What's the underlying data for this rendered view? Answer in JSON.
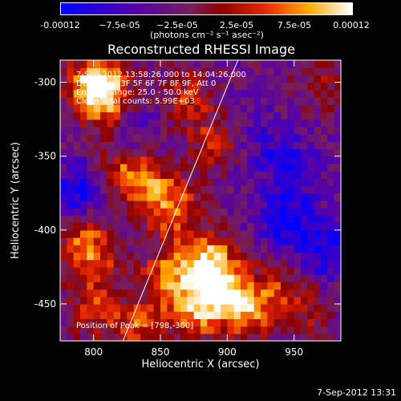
{
  "colorbar": {
    "ticks": [
      "-0.00012",
      "−7.5e-05",
      "−2.5e-05",
      "2.5e-05",
      "7.5e-05",
      "0.00012"
    ],
    "units": "(photons cm⁻² s⁻¹ asec⁻²)",
    "range": [
      -0.00012,
      0.00012
    ]
  },
  "chart_data": {
    "type": "heatmap",
    "title": "Reconstructed RHESSI Image",
    "xlabel": "Heliocentric X (arcsec)",
    "ylabel": "Heliocentric Y (arcsec)",
    "xlim": [
      775,
      985
    ],
    "ylim": [
      -475,
      -285
    ],
    "xticks": [
      "800",
      "850",
      "900",
      "950"
    ],
    "yticks": [
      "-300",
      "-350",
      "-400",
      "-450"
    ],
    "xtick_values": [
      800,
      850,
      900,
      950
    ],
    "ytick_values": [
      -300,
      -350,
      -400,
      -450
    ],
    "limb_line": [
      [
        822,
        -475
      ],
      [
        908,
        -285
      ]
    ],
    "annotations": [
      "7-Sep-2012 13:58:26.000 to 14:04:26.000",
      "Detectors: 3F 5F 6F 7F 8F 9F, Att 0",
      "Energy Range: 25.0 - 50.0 keV",
      "Clean    Total counts: 5.99E+03"
    ],
    "peak_label": "Position of Peak = [798,-300]",
    "peak": [
      798,
      -300
    ],
    "hotspots": [
      {
        "x": 885,
        "y": -420,
        "v": 0.00012
      },
      {
        "x": 895,
        "y": -440,
        "v": 0.00011
      },
      {
        "x": 855,
        "y": -430,
        "v": 9e-05
      },
      {
        "x": 875,
        "y": -455,
        "v": 0.0001
      },
      {
        "x": 915,
        "y": -455,
        "v": 9e-05
      },
      {
        "x": 935,
        "y": -440,
        "v": 6e-05
      },
      {
        "x": 800,
        "y": -300,
        "v": 0.00012
      },
      {
        "x": 810,
        "y": -310,
        "v": 0.0001
      },
      {
        "x": 860,
        "y": -385,
        "v": 9e-05
      },
      {
        "x": 840,
        "y": -370,
        "v": 8e-05
      },
      {
        "x": 820,
        "y": -360,
        "v": 7e-05
      },
      {
        "x": 800,
        "y": -420,
        "v": 8e-05
      },
      {
        "x": 790,
        "y": -400,
        "v": 7e-05
      },
      {
        "x": 890,
        "y": -340,
        "v": 6e-05
      },
      {
        "x": 870,
        "y": -310,
        "v": 7e-05
      },
      {
        "x": 800,
        "y": -455,
        "v": 7e-05
      },
      {
        "x": 835,
        "y": -465,
        "v": 8e-05
      },
      {
        "x": 960,
        "y": -455,
        "v": 5e-05
      },
      {
        "x": 970,
        "y": -300,
        "v": 4e-05
      },
      {
        "x": 945,
        "y": -395,
        "v": -8e-05
      },
      {
        "x": 790,
        "y": -375,
        "v": -9e-05
      },
      {
        "x": 975,
        "y": -415,
        "v": -7e-05
      },
      {
        "x": 930,
        "y": -340,
        "v": -4e-05
      },
      {
        "x": 830,
        "y": -330,
        "v": -3e-05
      },
      {
        "x": 950,
        "y": -360,
        "v": -5e-05
      }
    ]
  },
  "footer": {
    "timestamp": "7-Sep-2012 13:31"
  }
}
